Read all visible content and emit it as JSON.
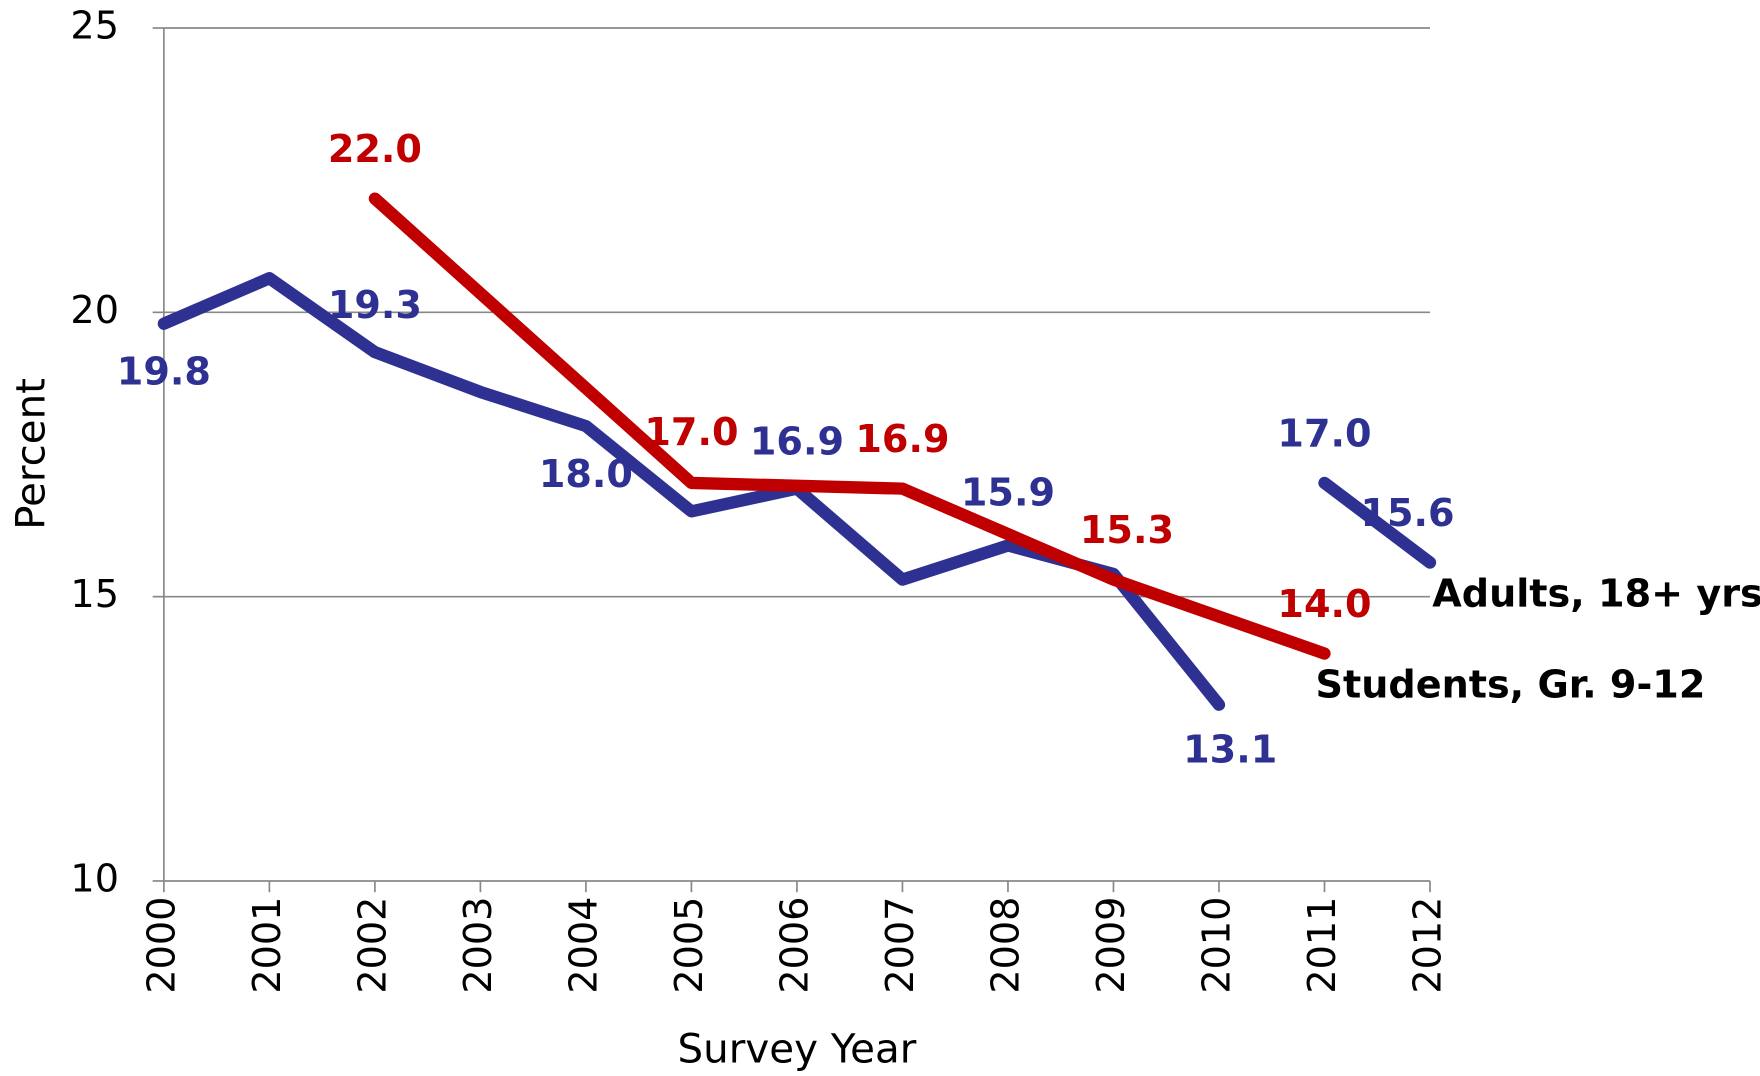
{
  "chart_data": {
    "type": "line",
    "xlabel": "Survey Year",
    "ylabel": "Percent",
    "xlim": [
      2000,
      2012
    ],
    "xticks": [
      2000,
      2001,
      2002,
      2003,
      2004,
      2005,
      2006,
      2007,
      2008,
      2009,
      2010,
      2011,
      2012
    ],
    "ylim": [
      10,
      25
    ],
    "yticks": [
      10,
      15,
      20,
      25
    ],
    "grid": true,
    "series": [
      {
        "color": "#2e3192",
        "x": [
          2000,
          2001,
          2002,
          2003,
          2004,
          2005,
          2006,
          2007,
          2008,
          2009,
          2010
        ],
        "values": [
          19.8,
          20.6,
          19.3,
          18.6,
          18.0,
          16.5,
          16.9,
          15.3,
          15.9,
          15.4,
          13.1
        ],
        "value_labels": [
          "19.8",
          null,
          "19.3",
          null,
          "18.0",
          null,
          "16.9",
          null,
          "15.9",
          null,
          "13.1"
        ]
      },
      {
        "name": "Adults, 18+ yrs",
        "color": "#2e3192",
        "x": [
          2011,
          2012
        ],
        "values": [
          17.0,
          15.6
        ],
        "value_labels": [
          "17.0",
          "15.6"
        ]
      },
      {
        "name": "Students, Gr. 9-12",
        "color": "#c00000",
        "x": [
          2002,
          2005,
          2007,
          2009,
          2011
        ],
        "values": [
          22.0,
          17.0,
          16.9,
          15.3,
          14.0
        ],
        "value_labels": [
          "22.0",
          "17.0",
          "16.9",
          "15.3",
          "14.0"
        ]
      }
    ]
  }
}
